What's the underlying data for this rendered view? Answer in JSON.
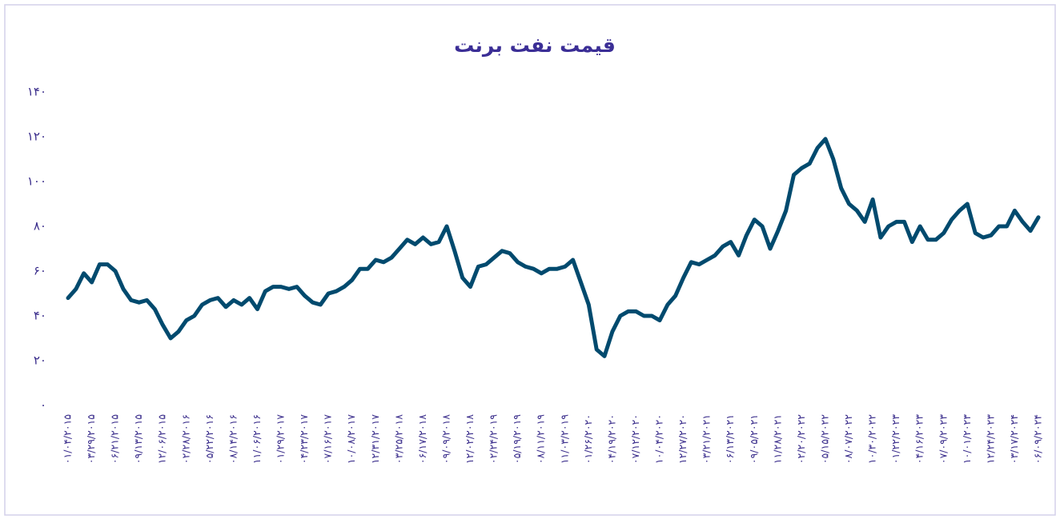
{
  "chart_data": {
    "type": "line",
    "title": "قیمت نفت برنت",
    "categories": [
      "۰۱/۰۴/۲۰۱۵",
      null,
      null,
      "۰۳/۲۹/۲۰۱۵",
      null,
      null,
      "۰۶/۲۱/۲۰۱۵",
      null,
      null,
      "۰۹/۱۳/۲۰۱۵",
      null,
      null,
      "۱۲/۰۶/۲۰۱۵",
      null,
      null,
      "۰۲/۲۸/۲۰۱۶",
      null,
      null,
      "۰۵/۲۲/۲۰۱۶",
      null,
      null,
      "۰۸/۱۴/۲۰۱۶",
      null,
      null,
      "۱۱/۰۶/۲۰۱۶",
      null,
      null,
      "۰۱/۲۹/۲۰۱۷",
      null,
      null,
      "۰۴/۲۳/۲۰۱۷",
      null,
      null,
      "۰۷/۱۶/۲۰۱۷",
      null,
      null,
      "۱۰/۰۸/۲۰۱۷",
      null,
      null,
      "۱۲/۳۱/۲۰۱۷",
      null,
      null,
      "۰۳/۲۵/۲۰۱۸",
      null,
      null,
      "۰۶/۱۷/۲۰۱۸",
      null,
      null,
      "۰۹/۰۹/۲۰۱۸",
      null,
      null,
      "۱۲/۰۲/۲۰۱۸",
      null,
      null,
      "۰۲/۲۴/۲۰۱۹",
      null,
      null,
      "۰۵/۱۹/۲۰۱۹",
      null,
      null,
      "۰۸/۱۱/۲۰۱۹",
      null,
      null,
      "۱۱/۰۳/۲۰۱۹",
      null,
      null,
      "۰۱/۲۶/۲۰۲۰",
      null,
      null,
      "۰۴/۱۹/۲۰۲۰",
      null,
      null,
      "۰۷/۱۲/۲۰۲۰",
      null,
      null,
      "۱۰/۰۴/۲۰۲۰",
      null,
      null,
      "۱۲/۲۷/۲۰۲۰",
      null,
      null,
      "۰۳/۲۱/۲۰۲۱",
      null,
      null,
      "۰۶/۱۳/۲۰۲۱",
      null,
      null,
      "۰۹/۰۵/۲۰۲۱",
      null,
      null,
      "۱۱/۲۸/۲۰۲۱",
      null,
      null,
      "۰۲/۲۰/۲۰۲۲",
      null,
      null,
      "۰۵/۱۵/۲۰۲۲",
      null,
      null,
      "۰۸/۰۷/۲۰۲۲",
      null,
      null,
      "۱۰/۳۰/۲۰۲۲",
      null,
      null,
      "۰۱/۲۲/۲۰۲۳",
      null,
      null,
      "۰۴/۱۶/۲۰۲۳",
      null,
      null,
      "۰۷/۰۹/۲۰۲۳",
      null,
      null,
      "۱۰/۰۱/۲۰۲۳",
      null,
      null,
      "۱۲/۲۴/۲۰۲۳",
      null,
      null,
      "۰۳/۱۷/۲۰۲۴",
      null,
      null,
      "۰۶/۰۹/۲۰۲۴"
    ],
    "values": [
      48,
      52,
      59,
      55,
      63,
      63,
      60,
      52,
      47,
      46,
      47,
      43,
      36,
      30,
      33,
      38,
      40,
      45,
      47,
      48,
      44,
      47,
      45,
      48,
      43,
      51,
      53,
      53,
      52,
      53,
      49,
      46,
      45,
      50,
      51,
      53,
      56,
      61,
      61,
      65,
      64,
      66,
      70,
      74,
      72,
      75,
      72,
      73,
      80,
      69,
      57,
      53,
      62,
      63,
      66,
      69,
      68,
      64,
      62,
      61,
      59,
      61,
      61,
      62,
      65,
      55,
      45,
      25,
      22,
      33,
      40,
      42,
      42,
      40,
      40,
      38,
      45,
      49,
      57,
      64,
      63,
      65,
      67,
      71,
      73,
      67,
      76,
      83,
      80,
      70,
      78,
      87,
      103,
      106,
      108,
      115,
      119,
      110,
      97,
      90,
      87,
      82,
      92,
      75,
      80,
      82,
      82,
      73,
      80,
      74,
      74,
      77,
      83,
      87,
      90,
      77,
      75,
      76,
      80,
      80,
      87,
      82,
      78,
      84
    ],
    "color": "#004a6e",
    "ylim": [
      0,
      140
    ],
    "yticks": [
      {
        "value": 0,
        "label": "۰"
      },
      {
        "value": 20,
        "label": "۲۰"
      },
      {
        "value": 40,
        "label": "۴۰"
      },
      {
        "value": 60,
        "label": "۶۰"
      },
      {
        "value": 80,
        "label": "۸۰"
      },
      {
        "value": 100,
        "label": "۱۰۰"
      },
      {
        "value": 120,
        "label": "۱۲۰"
      },
      {
        "value": 140,
        "label": "۱۴۰"
      }
    ],
    "grid": false
  }
}
